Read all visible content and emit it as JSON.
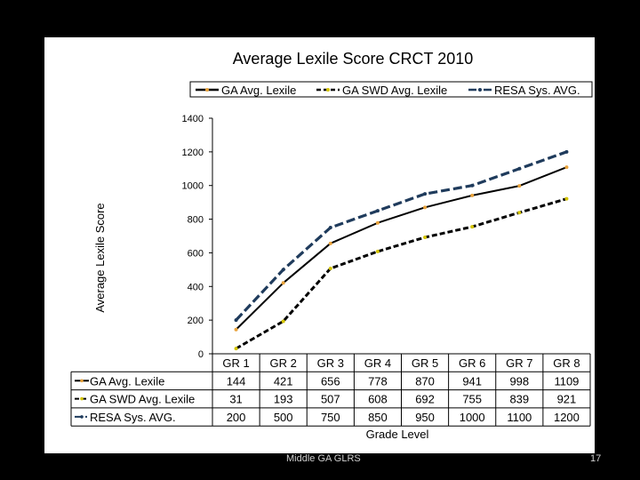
{
  "chart_data": {
    "type": "line",
    "title": "Average Lexile Score CRCT 2010",
    "xlabel": "Grade Level",
    "ylabel": "Average Lexile Score",
    "ylim": [
      0,
      1400
    ],
    "yticks": [
      0,
      200,
      400,
      600,
      800,
      1000,
      1200,
      1400
    ],
    "categories": [
      "GR 1",
      "GR 2",
      "GR 3",
      "GR 4",
      "GR 5",
      "GR 6",
      "GR 7",
      "GR 8"
    ],
    "series": [
      {
        "name": "GA Avg. Lexile",
        "values": [
          144,
          421,
          656,
          778,
          870,
          941,
          998,
          1109
        ],
        "color": "#000000",
        "marker": "#e8a23a",
        "dash": "solid"
      },
      {
        "name": "GA SWD Avg. Lexile",
        "values": [
          31,
          193,
          507,
          608,
          692,
          755,
          839,
          921
        ],
        "color": "#000000",
        "marker": "#d4c400",
        "dash": "dashed"
      },
      {
        "name": "RESA Sys. AVG.",
        "values": [
          200,
          500,
          750,
          850,
          950,
          1000,
          1100,
          1200
        ],
        "color": "#1f3b5c",
        "marker": "#1f3b5c",
        "dash": "longdash"
      }
    ],
    "grid": false,
    "legend_position": "top",
    "data_table": true
  },
  "footer": {
    "text": "Middle GA GLRS",
    "slide_number": "17"
  }
}
